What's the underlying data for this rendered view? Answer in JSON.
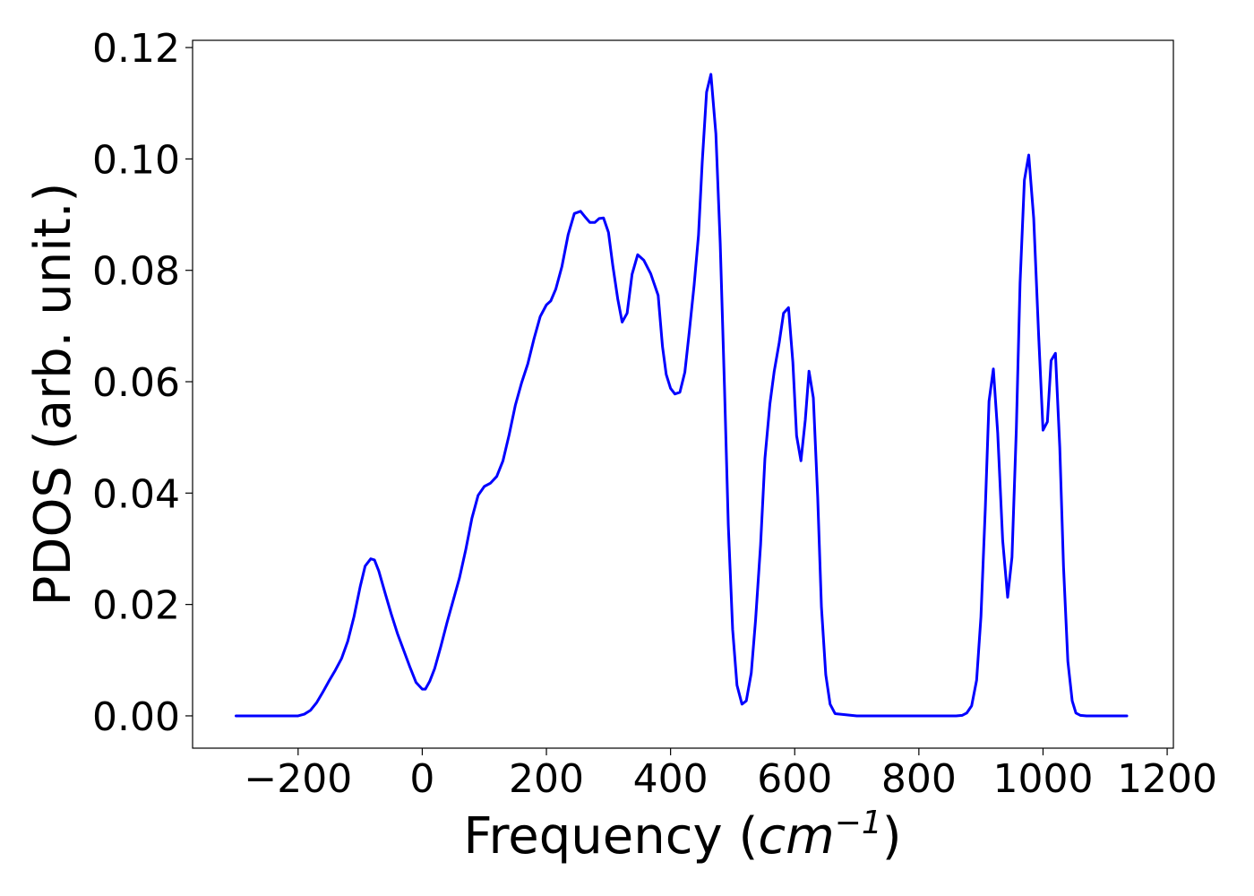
{
  "chart_data": {
    "type": "line",
    "title": "",
    "xlabel": "Frequency",
    "xlabel_unit": "cm",
    "xlabel_unit_exponent": "−1",
    "ylabel": "PDOS (arb. unit.)",
    "xlim": [
      -370,
      1210
    ],
    "ylim": [
      -0.0058,
      0.1213
    ],
    "xticks": [
      -200,
      0,
      200,
      400,
      600,
      800,
      1000,
      1200
    ],
    "xtick_labels": [
      "−200",
      "0",
      "200",
      "400",
      "600",
      "800",
      "1000",
      "1200"
    ],
    "yticks": [
      0.0,
      0.02,
      0.04,
      0.06,
      0.08,
      0.1,
      0.12
    ],
    "ytick_labels": [
      "0.00",
      "0.02",
      "0.04",
      "0.06",
      "0.08",
      "0.10",
      "0.12"
    ],
    "grid": false,
    "legend": "none",
    "series": [
      {
        "color": "#0000ff",
        "x": [
          -300,
          -200,
          -190,
          -180,
          -170,
          -160,
          -150,
          -140,
          -130,
          -120,
          -110,
          -100,
          -92,
          -83,
          -77,
          -70,
          -60,
          -50,
          -40,
          -30,
          -20,
          -10,
          0,
          5,
          12,
          20,
          30,
          40,
          50,
          60,
          70,
          80,
          90,
          100,
          110,
          120,
          130,
          140,
          150,
          160,
          170,
          180,
          190,
          200,
          207,
          215,
          225,
          235,
          245,
          255,
          263,
          270,
          278,
          285,
          292,
          300,
          307,
          315,
          322,
          330,
          338,
          347,
          357,
          368,
          380,
          387,
          393,
          400,
          407,
          415,
          423,
          430,
          438,
          445,
          451,
          458,
          465,
          473,
          480,
          487,
          493,
          500,
          507,
          515,
          522,
          530,
          537,
          545,
          552,
          560,
          567,
          575,
          582,
          590,
          597,
          603,
          610,
          617,
          623,
          630,
          637,
          643,
          650,
          657,
          665,
          700,
          800,
          860,
          870,
          877,
          885,
          893,
          900,
          907,
          913,
          920,
          927,
          935,
          943,
          950,
          957,
          963,
          970,
          977,
          985,
          993,
          1000,
          1007,
          1013,
          1020,
          1027,
          1033,
          1040,
          1047,
          1053,
          1060,
          1070,
          1135
        ],
        "values": [
          0.0,
          0.0,
          0.0003,
          0.001,
          0.0024,
          0.0043,
          0.0063,
          0.0082,
          0.0103,
          0.0134,
          0.0178,
          0.0232,
          0.0269,
          0.0282,
          0.028,
          0.026,
          0.0221,
          0.0183,
          0.0148,
          0.0118,
          0.0088,
          0.006,
          0.0048,
          0.0048,
          0.0062,
          0.0085,
          0.0125,
          0.0168,
          0.0208,
          0.0248,
          0.0298,
          0.0355,
          0.0396,
          0.0412,
          0.0418,
          0.043,
          0.0458,
          0.0505,
          0.0558,
          0.0598,
          0.0632,
          0.0677,
          0.0717,
          0.0738,
          0.0745,
          0.0766,
          0.0807,
          0.0864,
          0.0902,
          0.0906,
          0.0895,
          0.0886,
          0.0886,
          0.0893,
          0.0894,
          0.0868,
          0.0808,
          0.0748,
          0.0707,
          0.0723,
          0.0793,
          0.0828,
          0.0818,
          0.0794,
          0.0755,
          0.0663,
          0.0613,
          0.0588,
          0.0578,
          0.0581,
          0.0617,
          0.0688,
          0.0774,
          0.0863,
          0.0994,
          0.112,
          0.1152,
          0.1045,
          0.0848,
          0.0585,
          0.0343,
          0.0155,
          0.0055,
          0.0021,
          0.0027,
          0.0077,
          0.0173,
          0.0307,
          0.0462,
          0.056,
          0.0619,
          0.067,
          0.0723,
          0.0733,
          0.0635,
          0.0503,
          0.0458,
          0.0531,
          0.0619,
          0.0571,
          0.0393,
          0.0196,
          0.0074,
          0.0021,
          0.0004,
          0.0,
          0.0,
          0.0,
          0.0001,
          0.0005,
          0.0018,
          0.0064,
          0.0178,
          0.0372,
          0.0565,
          0.0623,
          0.0508,
          0.0315,
          0.0213,
          0.0285,
          0.0515,
          0.0777,
          0.0962,
          0.1007,
          0.0893,
          0.0682,
          0.0513,
          0.0528,
          0.0638,
          0.0651,
          0.0482,
          0.0268,
          0.0098,
          0.0027,
          0.0005,
          0.0001,
          0.0,
          0.0
        ]
      }
    ]
  }
}
